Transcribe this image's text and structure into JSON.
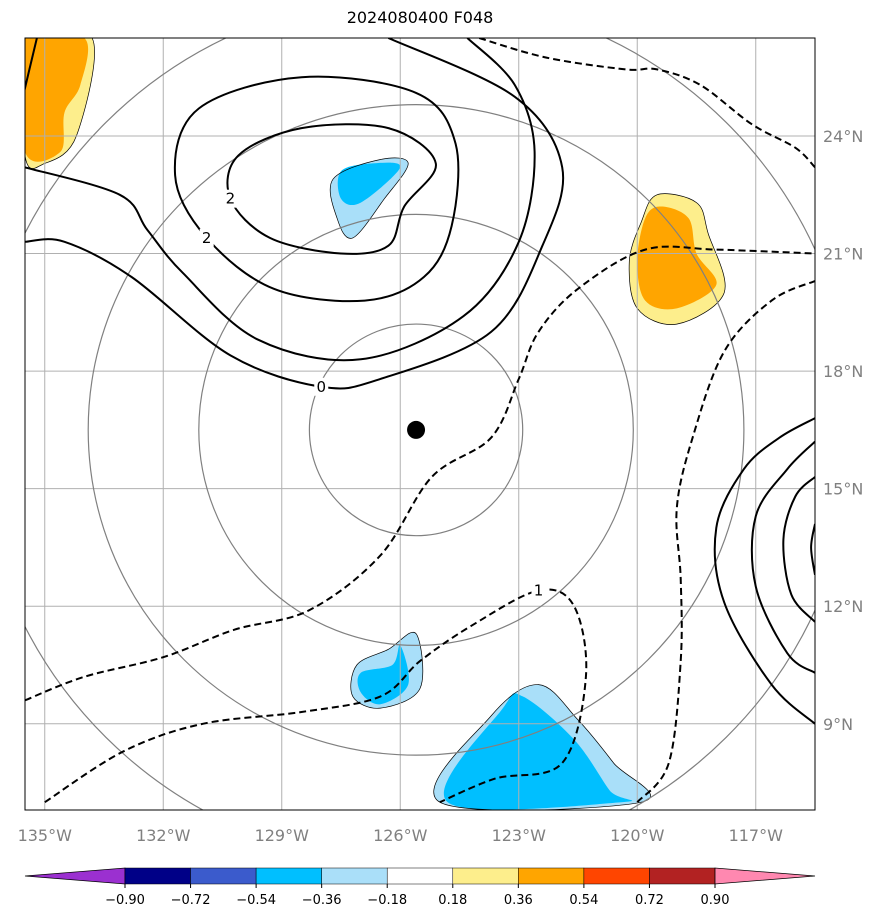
{
  "title": "2024080400 F048",
  "map": {
    "lon_range": [
      -135.5,
      -115.5
    ],
    "lat_range": [
      6.8,
      26.5
    ],
    "lon_ticks": [
      {
        "value": -135,
        "label": "135°W"
      },
      {
        "value": -132,
        "label": "132°W"
      },
      {
        "value": -129,
        "label": "129°W"
      },
      {
        "value": -126,
        "label": "126°W"
      },
      {
        "value": -123,
        "label": "123°W"
      },
      {
        "value": -120,
        "label": "120°W"
      },
      {
        "value": -117,
        "label": "117°W"
      }
    ],
    "lat_ticks": [
      {
        "value": 9,
        "label": "9°N"
      },
      {
        "value": 12,
        "label": "12°N"
      },
      {
        "value": 15,
        "label": "15°N"
      },
      {
        "value": 18,
        "label": "18°N"
      },
      {
        "value": 21,
        "label": "21°N"
      },
      {
        "value": 24,
        "label": "24°N"
      }
    ],
    "gridlines": true,
    "center_marker": {
      "lon": -125.6,
      "lat": 16.5
    },
    "range_rings_deg": [
      2.7,
      5.5,
      8.3,
      11.1
    ]
  },
  "contours": {
    "solid": [
      {
        "label": "2",
        "points": [
          [
            -125.1,
            23.3
          ],
          [
            -126.3,
            24.2
          ],
          [
            -128.5,
            24.2
          ],
          [
            -130.1,
            23.5
          ],
          [
            -130.3,
            22.4
          ],
          [
            -129.3,
            21.4
          ],
          [
            -127.5,
            21.0
          ],
          [
            -126.3,
            21.2
          ],
          [
            -125.9,
            22.2
          ],
          [
            -125.1,
            23.3
          ]
        ]
      },
      {
        "label": "2",
        "points": [
          [
            -124.6,
            23.8
          ],
          [
            -125.6,
            25.1
          ],
          [
            -128.5,
            25.5
          ],
          [
            -131.1,
            24.7
          ],
          [
            -131.7,
            23.0
          ],
          [
            -130.9,
            21.4
          ],
          [
            -129.2,
            20.1
          ],
          [
            -126.9,
            19.8
          ],
          [
            -125.4,
            20.4
          ],
          [
            -124.7,
            21.7
          ],
          [
            -124.6,
            23.8
          ]
        ]
      },
      {
        "label": "",
        "points": [
          [
            -124.3,
            26.5
          ],
          [
            -123.1,
            25.3
          ],
          [
            -122.6,
            23.6
          ],
          [
            -123.0,
            21.3
          ],
          [
            -124.4,
            19.4
          ],
          [
            -127.0,
            18.3
          ],
          [
            -129.6,
            18.8
          ],
          [
            -131.5,
            20.5
          ],
          [
            -132.4,
            21.6
          ],
          [
            -133.1,
            22.5
          ],
          [
            -135.5,
            23.2
          ]
        ]
      },
      {
        "label": "0",
        "points": [
          [
            -126.3,
            26.5
          ],
          [
            -123.1,
            25.0
          ],
          [
            -121.9,
            23.2
          ],
          [
            -122.4,
            21.2
          ],
          [
            -123.7,
            19.0
          ],
          [
            -126.5,
            17.8
          ],
          [
            -128.0,
            17.6
          ],
          [
            -130.3,
            18.4
          ],
          [
            -132.8,
            20.4
          ],
          [
            -134.5,
            21.3
          ],
          [
            -135.5,
            21.3
          ]
        ]
      },
      {
        "label": "",
        "points": [
          [
            -135.2,
            26.5
          ],
          [
            -135.6,
            24.8
          ]
        ]
      },
      {
        "label": "",
        "points": [
          [
            -115.5,
            16.8
          ],
          [
            -116.4,
            16.3
          ],
          [
            -117.3,
            15.5
          ],
          [
            -118.0,
            14.0
          ],
          [
            -117.8,
            12.1
          ],
          [
            -116.6,
            10.0
          ],
          [
            -115.5,
            9.0
          ]
        ]
      },
      {
        "label": "",
        "points": [
          [
            -115.5,
            16.2
          ],
          [
            -116.2,
            15.5
          ],
          [
            -117.0,
            14.3
          ],
          [
            -117.0,
            12.5
          ],
          [
            -116.2,
            10.8
          ],
          [
            -115.5,
            10.3
          ]
        ]
      },
      {
        "label": "",
        "points": [
          [
            -115.5,
            15.3
          ],
          [
            -116.0,
            14.8
          ],
          [
            -116.3,
            13.7
          ],
          [
            -116.1,
            12.3
          ],
          [
            -115.5,
            11.6
          ]
        ]
      },
      {
        "label": "",
        "points": [
          [
            -115.5,
            14.1
          ],
          [
            -115.6,
            13.5
          ],
          [
            -115.5,
            12.8
          ]
        ]
      }
    ],
    "dashed": [
      {
        "label": "",
        "points": [
          [
            -135.5,
            9.6
          ],
          [
            -134.0,
            10.2
          ],
          [
            -132.0,
            10.7
          ],
          [
            -130.2,
            11.4
          ],
          [
            -128.3,
            11.9
          ],
          [
            -126.5,
            13.3
          ],
          [
            -125.2,
            15.3
          ],
          [
            -123.7,
            16.3
          ],
          [
            -123.0,
            17.8
          ],
          [
            -122.5,
            19.0
          ],
          [
            -121.5,
            20.1
          ],
          [
            -119.8,
            21.1
          ],
          [
            -118.0,
            21.1
          ],
          [
            -115.5,
            21.0
          ]
        ]
      },
      {
        "label": "1",
        "points": [
          [
            -135.0,
            7.0
          ],
          [
            -133.0,
            8.3
          ],
          [
            -131.0,
            9.0
          ],
          [
            -128.5,
            9.3
          ],
          [
            -126.5,
            9.7
          ],
          [
            -125.5,
            10.6
          ],
          [
            -124.2,
            11.5
          ],
          [
            -122.5,
            12.4
          ],
          [
            -121.6,
            12.0
          ],
          [
            -121.3,
            10.2
          ],
          [
            -121.9,
            8.0
          ],
          [
            -123.6,
            7.6
          ],
          [
            -125.0,
            7.0
          ]
        ]
      },
      {
        "label": "",
        "points": [
          [
            -120.0,
            7.0
          ],
          [
            -119.2,
            8.0
          ],
          [
            -118.9,
            10.6
          ],
          [
            -118.9,
            12.7
          ],
          [
            -119.0,
            14.5
          ],
          [
            -118.6,
            16.3
          ],
          [
            -117.8,
            18.5
          ],
          [
            -116.6,
            19.8
          ],
          [
            -115.5,
            20.3
          ]
        ]
      },
      {
        "label": "",
        "points": [
          [
            -124.0,
            26.5
          ],
          [
            -122.3,
            26.0
          ],
          [
            -120.3,
            25.7
          ],
          [
            -119.5,
            25.7
          ],
          [
            -118.4,
            25.3
          ],
          [
            -117.1,
            24.3
          ],
          [
            -116.0,
            23.7
          ],
          [
            -115.5,
            23.2
          ]
        ]
      }
    ]
  },
  "shaded_regions": [
    {
      "color": "#fdee8c",
      "points": [
        [
          -135.5,
          26.5
        ],
        [
          -133.8,
          26.5
        ],
        [
          -134.2,
          24.0
        ],
        [
          -135.0,
          23.3
        ],
        [
          -135.5,
          23.5
        ]
      ]
    },
    {
      "color": "#ffa500",
      "points": [
        [
          -135.5,
          26.5
        ],
        [
          -134.0,
          26.5
        ],
        [
          -134.1,
          25.3
        ],
        [
          -134.5,
          24.6
        ],
        [
          -134.6,
          23.6
        ],
        [
          -135.5,
          23.6
        ]
      ]
    },
    {
      "color": "#fdee8c",
      "points": [
        [
          -119.5,
          22.5
        ],
        [
          -118.5,
          22.3
        ],
        [
          -118.2,
          21.5
        ],
        [
          -117.8,
          20.0
        ],
        [
          -119.0,
          19.2
        ],
        [
          -120.0,
          19.6
        ],
        [
          -120.2,
          20.8
        ],
        [
          -119.9,
          21.8
        ]
      ]
    },
    {
      "color": "#ffa500",
      "points": [
        [
          -119.4,
          22.2
        ],
        [
          -118.7,
          21.9
        ],
        [
          -118.5,
          21.0
        ],
        [
          -118.0,
          20.2
        ],
        [
          -119.0,
          19.6
        ],
        [
          -119.8,
          19.8
        ],
        [
          -120.0,
          20.8
        ],
        [
          -119.8,
          21.9
        ]
      ]
    },
    {
      "color": "#a9dff9",
      "points": [
        [
          -125.8,
          23.3
        ],
        [
          -126.4,
          22.4
        ],
        [
          -127.2,
          21.4
        ],
        [
          -127.6,
          21.9
        ],
        [
          -127.7,
          22.9
        ],
        [
          -126.5,
          23.4
        ]
      ]
    },
    {
      "color": "#00bfff",
      "points": [
        [
          -126.0,
          23.2
        ],
        [
          -127.0,
          22.3
        ],
        [
          -127.5,
          22.4
        ],
        [
          -127.5,
          23.1
        ],
        [
          -126.7,
          23.3
        ]
      ]
    },
    {
      "color": "#a9dff9",
      "points": [
        [
          -125.6,
          11.3
        ],
        [
          -126.3,
          10.9
        ],
        [
          -127.1,
          10.5
        ],
        [
          -127.2,
          9.7
        ],
        [
          -126.5,
          9.4
        ],
        [
          -125.5,
          9.9
        ]
      ]
    },
    {
      "color": "#00bfff",
      "points": [
        [
          -126.0,
          11.0
        ],
        [
          -126.2,
          10.5
        ],
        [
          -127.0,
          10.3
        ],
        [
          -127.0,
          9.8
        ],
        [
          -126.5,
          9.5
        ],
        [
          -125.8,
          10.0
        ]
      ]
    },
    {
      "color": "#a9dff9",
      "points": [
        [
          -125.0,
          7.0
        ],
        [
          -123.7,
          9.2
        ],
        [
          -122.5,
          10.0
        ],
        [
          -121.5,
          9.1
        ],
        [
          -120.6,
          8.0
        ],
        [
          -119.9,
          7.0
        ]
      ]
    },
    {
      "color": "#00bfff",
      "points": [
        [
          -124.8,
          7.0
        ],
        [
          -123.4,
          9.4
        ],
        [
          -122.9,
          9.7
        ],
        [
          -121.6,
          8.6
        ],
        [
          -120.7,
          7.3
        ],
        [
          -120.4,
          7.0
        ]
      ]
    }
  ],
  "colorbar": {
    "colors": [
      "#9b30d0",
      "#000087",
      "#3b5bcc",
      "#00bfff",
      "#aadff9",
      "#ffffff",
      "#fdee8c",
      "#ffa500",
      "#ff4500",
      "#b22222",
      "#ff88b0"
    ],
    "labels": [
      "−0.90",
      "−0.72",
      "−0.54",
      "−0.36",
      "−0.18",
      "0.18",
      "0.36",
      "0.54",
      "0.72",
      "0.90"
    ]
  }
}
